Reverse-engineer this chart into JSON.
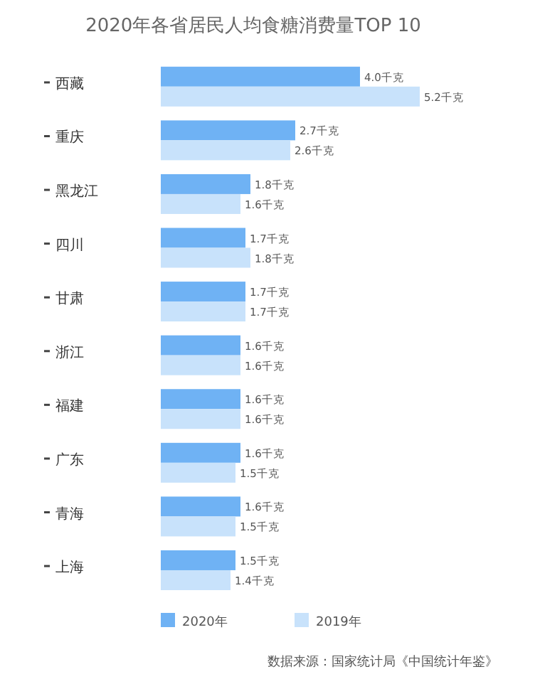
{
  "chart_data": {
    "type": "bar",
    "orientation": "horizontal",
    "title": "2020年各省居民人均食糖消费量TOP 10",
    "categories": [
      "西藏",
      "重庆",
      "黑龙江",
      "四川",
      "甘肃",
      "浙江",
      "福建",
      "广东",
      "青海",
      "上海"
    ],
    "series": [
      {
        "name": "2020年",
        "color": "#6fb2f4",
        "values": [
          4.0,
          2.7,
          1.8,
          1.7,
          1.7,
          1.6,
          1.6,
          1.6,
          1.6,
          1.5
        ],
        "value_labels": [
          "4.0千克",
          "2.7千克",
          "1.8千克",
          "1.7千克",
          "1.7千克",
          "1.6千克",
          "1.6千克",
          "1.6千克",
          "1.6千克",
          "1.5千克"
        ]
      },
      {
        "name": "2019年",
        "color": "#c8e2fb",
        "values": [
          5.2,
          2.6,
          1.6,
          1.8,
          1.7,
          1.6,
          1.6,
          1.5,
          1.5,
          1.4
        ],
        "value_labels": [
          "5.2千克",
          "2.6千克",
          "1.6千克",
          "1.8千克",
          "1.7千克",
          "1.6千克",
          "1.6千克",
          "1.5千克",
          "1.5千克",
          "1.4千克"
        ]
      }
    ],
    "tick_labels": "y",
    "legend": "bottom",
    "grid": false,
    "annotations": [
      "数据来源：国家统计局《中国统计年鉴》"
    ]
  }
}
